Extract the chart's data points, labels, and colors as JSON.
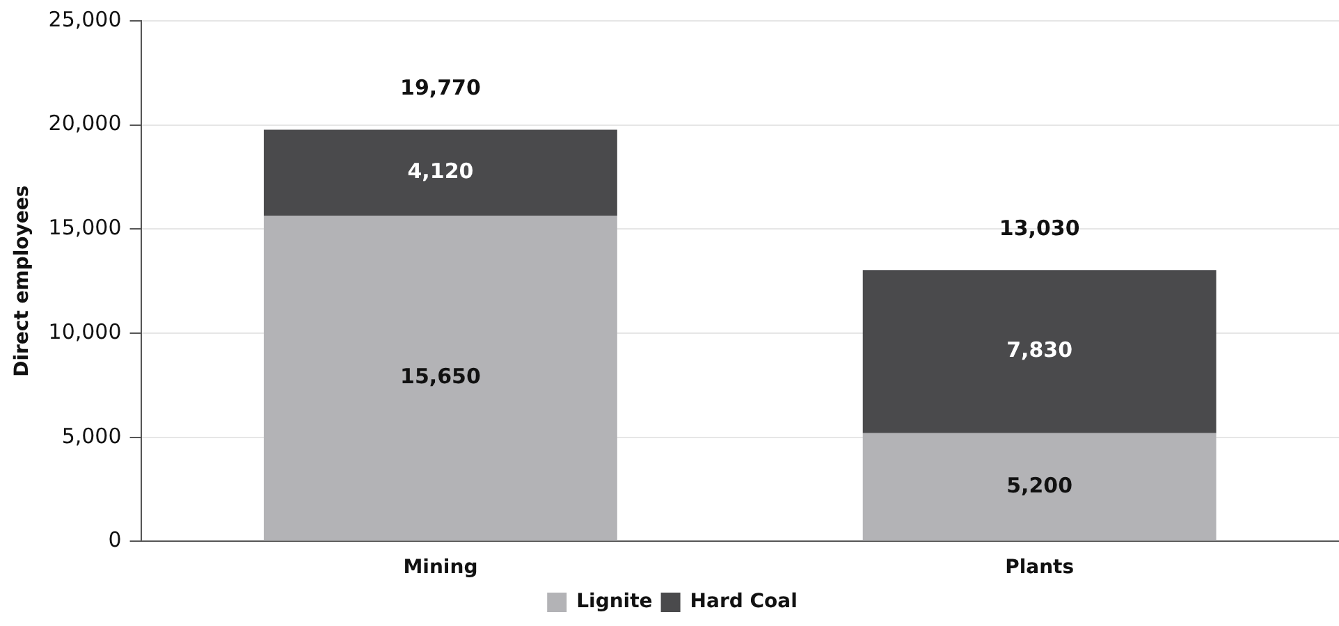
{
  "chart_data": {
    "type": "bar",
    "stacked": true,
    "ylabel": "Direct employees",
    "categories": [
      "Mining",
      "Plants"
    ],
    "series": [
      {
        "name": "Lignite",
        "color": "#b3b3b6",
        "values": [
          15650,
          5200
        ],
        "value_labels": [
          "15,650",
          "5,200"
        ]
      },
      {
        "name": "Hard Coal",
        "color": "#4a4a4c",
        "values": [
          4120,
          7830
        ],
        "value_labels": [
          "4,120",
          "7,830"
        ]
      }
    ],
    "ylim": [
      0,
      25000
    ],
    "yticks": [
      {
        "value": 0,
        "label": "0"
      },
      {
        "value": 5000,
        "label": "5,000"
      },
      {
        "value": 10000,
        "label": "10,000"
      },
      {
        "value": 15000,
        "label": "15,000"
      },
      {
        "value": 20000,
        "label": "20,000"
      },
      {
        "value": 25000,
        "label": "25,000"
      }
    ],
    "grid": "y",
    "legend": "bottom",
    "totals": [
      "19,770",
      "13,030"
    ]
  }
}
